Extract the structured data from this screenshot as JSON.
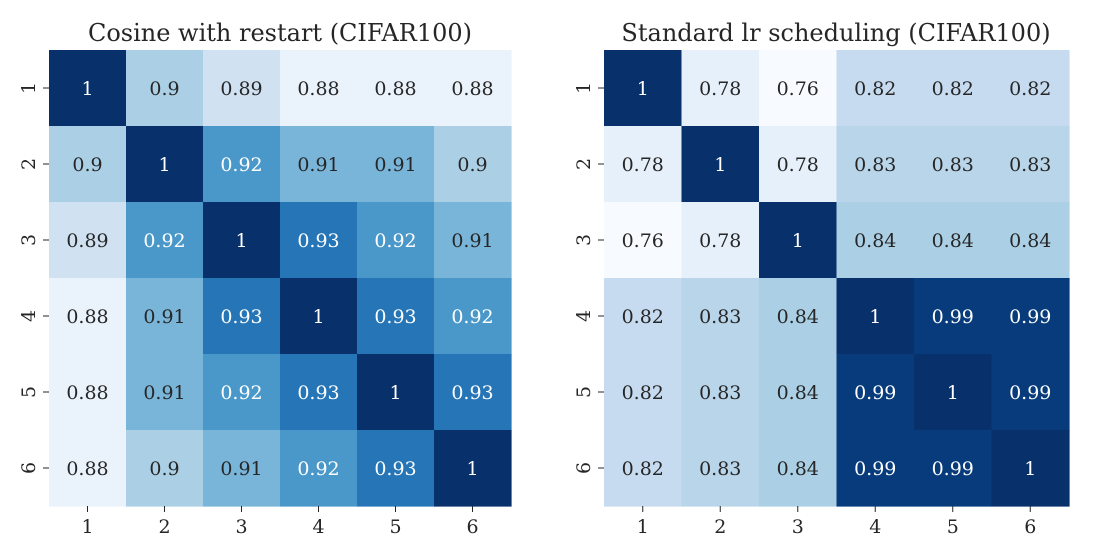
{
  "chart_data": [
    {
      "type": "heatmap",
      "title": "Cosine with restart (CIFAR100)",
      "x_categories": [
        "1",
        "2",
        "3",
        "4",
        "5",
        "6"
      ],
      "y_categories": [
        "1",
        "2",
        "3",
        "4",
        "5",
        "6"
      ],
      "values": [
        [
          1,
          0.9,
          0.89,
          0.88,
          0.88,
          0.88
        ],
        [
          0.9,
          1,
          0.92,
          0.91,
          0.91,
          0.9
        ],
        [
          0.89,
          0.92,
          1,
          0.93,
          0.92,
          0.91
        ],
        [
          0.88,
          0.91,
          0.93,
          1,
          0.93,
          0.92
        ],
        [
          0.88,
          0.91,
          0.92,
          0.93,
          1,
          0.93
        ],
        [
          0.88,
          0.9,
          0.91,
          0.92,
          0.93,
          1
        ]
      ],
      "colormap": "Blues",
      "color_range": [
        0.875,
        0.95
      ],
      "annotations": true
    },
    {
      "type": "heatmap",
      "title": "Standard lr scheduling (CIFAR100)",
      "x_categories": [
        "1",
        "2",
        "3",
        "4",
        "5",
        "6"
      ],
      "y_categories": [
        "1",
        "2",
        "3",
        "4",
        "5",
        "6"
      ],
      "values": [
        [
          1,
          0.78,
          0.76,
          0.82,
          0.82,
          0.82
        ],
        [
          0.78,
          1,
          0.78,
          0.83,
          0.83,
          0.83
        ],
        [
          0.76,
          0.78,
          1,
          0.84,
          0.84,
          0.84
        ],
        [
          0.82,
          0.83,
          0.84,
          1,
          0.99,
          0.99
        ],
        [
          0.82,
          0.83,
          0.84,
          0.99,
          1,
          0.99
        ],
        [
          0.82,
          0.83,
          0.84,
          0.99,
          0.99,
          1
        ]
      ],
      "colormap": "Blues",
      "color_range": [
        0.76,
        1.0
      ],
      "annotations": true
    }
  ],
  "colors": {
    "blues_scale": [
      "#f7fbff",
      "#deebf7",
      "#c6dbef",
      "#9ecae1",
      "#6baed6",
      "#4292c6",
      "#2171b5",
      "#08519c",
      "#08306b"
    ],
    "text_dark": "#262626",
    "text_light": "#ffffff"
  }
}
